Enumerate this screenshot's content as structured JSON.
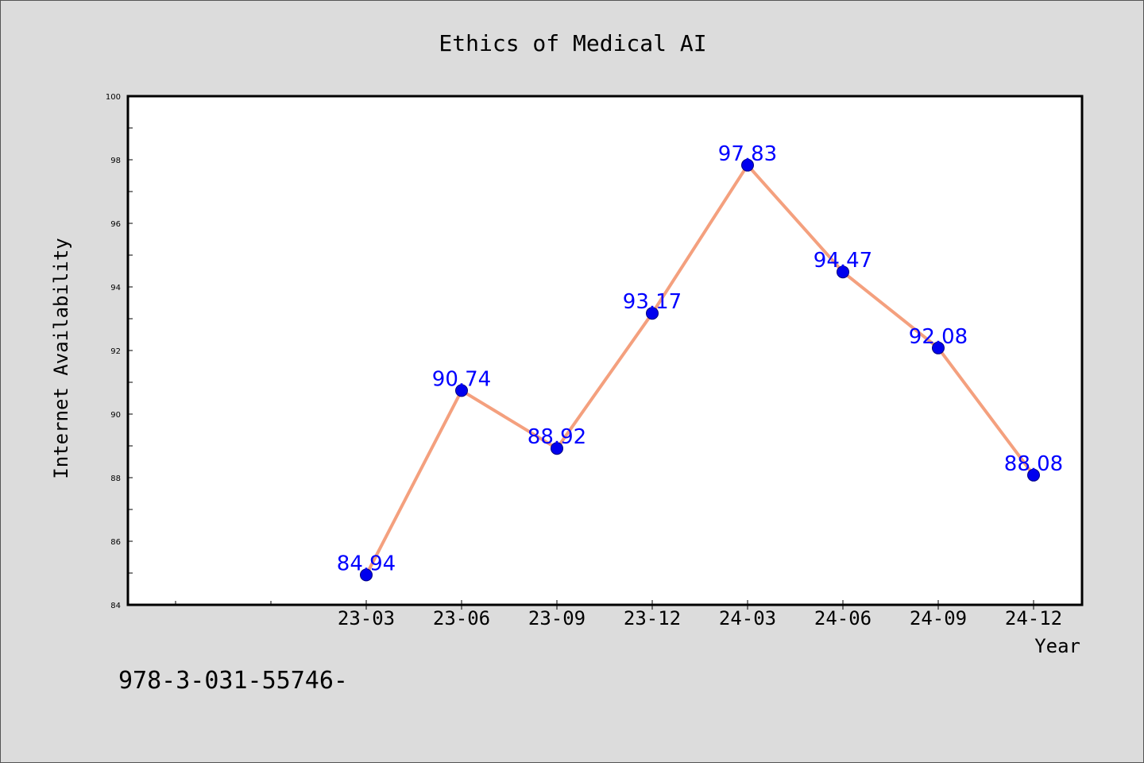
{
  "chart_data": {
    "type": "line",
    "title": "Ethics of Medical AI",
    "xlabel": "Year",
    "ylabel": "Internet Availability",
    "categories": [
      "23-03",
      "23-06",
      "23-09",
      "23-12",
      "24-03",
      "24-06",
      "24-09",
      "24-12"
    ],
    "series": [
      {
        "values": [
          84.94,
          90.74,
          88.92,
          93.17,
          97.83,
          94.47,
          92.08,
          88.08
        ],
        "line_color": "#f4a07e",
        "marker_color": "#0000ee"
      }
    ],
    "data_labels": [
      "84.94",
      "90.74",
      "88.92",
      "93.17",
      "97.83",
      "94.47",
      "92.08",
      "88.08"
    ],
    "data_label_color": "#0000ff",
    "ylim": [
      84,
      100
    ],
    "yticks": [
      84,
      86,
      88,
      90,
      92,
      94,
      96,
      98,
      100
    ],
    "ytick_labels": [
      "84",
      "86",
      "88",
      "90",
      "92",
      "94",
      "96",
      "98",
      "100"
    ],
    "grid": false,
    "legend": "none"
  },
  "footer": {
    "text": "978-3-031-55746-"
  },
  "colors": {
    "background": "#dcdcdc",
    "plot_background": "#ffffff",
    "axes": "#000000"
  }
}
